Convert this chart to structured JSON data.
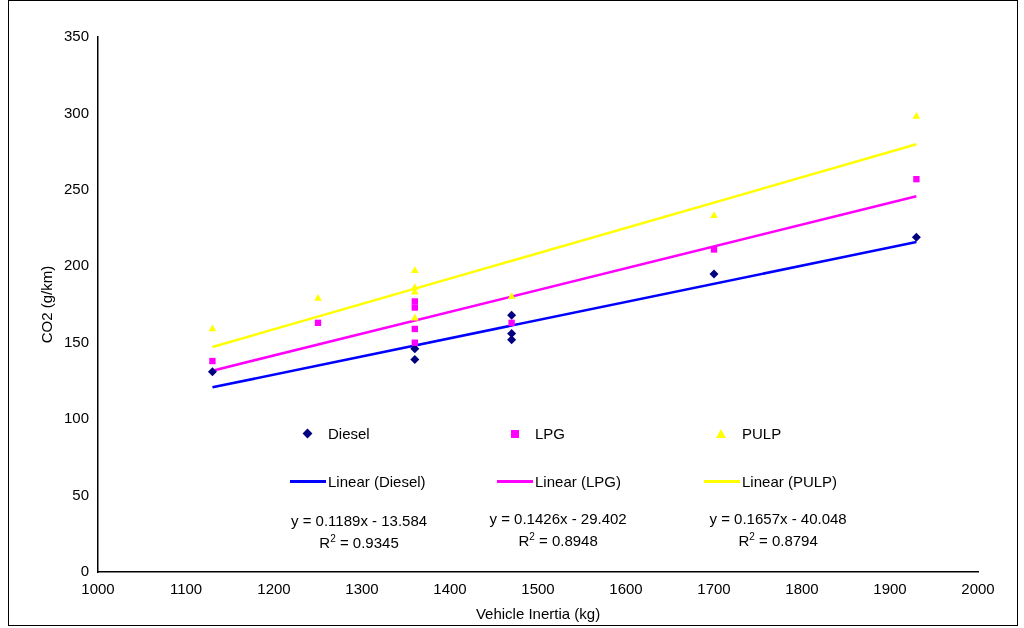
{
  "chart_data": {
    "type": "scatter",
    "xlabel": "Vehicle Inertia (kg)",
    "ylabel": "CO2 (g/km)",
    "xlim": [
      1000,
      2000
    ],
    "xticks": [
      1000,
      1100,
      1200,
      1300,
      1400,
      1500,
      1600,
      1700,
      1800,
      1900,
      2000
    ],
    "ylim": [
      0,
      350
    ],
    "yticks": [
      0,
      50,
      100,
      150,
      200,
      250,
      300,
      350
    ],
    "grid": false,
    "legend": "bottom",
    "series": [
      {
        "name": "Diesel",
        "type": "scatter",
        "marker": "diamond",
        "color": "#000080",
        "x": [
          1130,
          1360,
          1360,
          1470,
          1470,
          1470,
          1700,
          1930
        ],
        "values": [
          131,
          146,
          139,
          168,
          156,
          152,
          195,
          219
        ]
      },
      {
        "name": "LPG",
        "type": "scatter",
        "marker": "square",
        "color": "#ff00ff",
        "x": [
          1130,
          1250,
          1360,
          1360,
          1360,
          1360,
          1470,
          1700,
          1930
        ],
        "values": [
          138,
          163,
          177,
          173,
          159,
          150,
          163,
          211,
          257
        ]
      },
      {
        "name": "PULP",
        "type": "scatter",
        "marker": "triangle",
        "color": "#ffff00",
        "x": [
          1130,
          1250,
          1360,
          1360,
          1360,
          1360,
          1470,
          1700,
          1930
        ],
        "values": [
          159,
          179,
          197,
          186,
          183,
          166,
          180,
          233,
          298
        ]
      },
      {
        "name": "Linear (Diesel)",
        "type": "line",
        "marker": "none",
        "color": "#0000ff",
        "x": [
          1130,
          1930
        ],
        "values": [
          120.8,
          215.9
        ]
      },
      {
        "name": "Linear (LPG)",
        "type": "line",
        "marker": "none",
        "color": "#ff00ff",
        "x": [
          1130,
          1930
        ],
        "values": [
          131.7,
          245.8
        ]
      },
      {
        "name": "Linear (PULP)",
        "type": "line",
        "marker": "none",
        "color": "#ffff00",
        "x": [
          1130,
          1930
        ],
        "values": [
          147.2,
          279.8
        ]
      }
    ],
    "annotations": [
      "y = 0.1189x - 13.584\nR$^{2}$ = 0.9345",
      "y = 0.1426x - 29.402\nR$^{2}$ = 0.8948",
      "y = 0.1657x - 40.048\nR$^{2}$ = 0.8794"
    ]
  }
}
